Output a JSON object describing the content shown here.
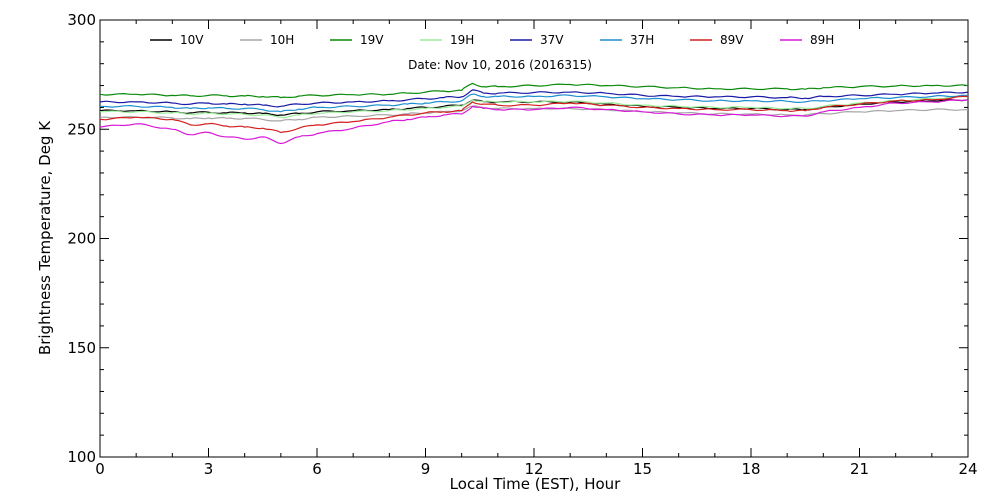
{
  "chart_data": {
    "type": "line",
    "title": "Date: Nov 10, 2016 (2016315)",
    "xlabel": "Local Time (EST), Hour",
    "ylabel": "Brightness Temperature, Deg  K",
    "xlim": [
      0,
      24
    ],
    "ylim": [
      100,
      300
    ],
    "xticks": [
      0,
      3,
      6,
      9,
      12,
      15,
      18,
      21,
      24
    ],
    "yticks": [
      100,
      150,
      200,
      250,
      300
    ],
    "grid": false,
    "legend_position": "top",
    "x": [
      0,
      1,
      2,
      2.5,
      3,
      3.5,
      4,
      4.5,
      5,
      5.5,
      6,
      7,
      8,
      8.5,
      9,
      9.5,
      10,
      10.3,
      10.6,
      11,
      12,
      13,
      14,
      15,
      16,
      17,
      18,
      19,
      19.5,
      20,
      21,
      22,
      23,
      24
    ],
    "series": [
      {
        "name": "10V",
        "color": "#000000",
        "values": [
          258.5,
          258.5,
          258,
          257.5,
          257.8,
          257.5,
          257.5,
          257.2,
          256.5,
          257.2,
          258,
          258.5,
          259,
          259.5,
          260,
          260.5,
          261,
          263.5,
          262.5,
          262.5,
          262.5,
          262.5,
          261.5,
          260.5,
          260,
          259.5,
          259.5,
          259,
          259,
          260,
          261.5,
          262.5,
          263,
          263.5
        ]
      },
      {
        "name": "10H",
        "color": "#a6a6a6",
        "values": [
          255.5,
          255.5,
          255.2,
          254.8,
          255.2,
          255,
          255,
          254.5,
          253.8,
          254.5,
          255.5,
          256,
          256.5,
          257,
          257.5,
          258,
          258.5,
          260.5,
          260,
          259.5,
          259.5,
          259.5,
          259,
          258,
          257.5,
          257,
          257,
          256.5,
          256.5,
          257.2,
          258,
          258.5,
          259,
          259
        ]
      },
      {
        "name": "19V",
        "color": "#0a8a0a",
        "values": [
          266,
          266,
          265.5,
          265.3,
          265.5,
          265.3,
          265.2,
          265,
          264.5,
          265.2,
          265.5,
          265.8,
          266,
          266.5,
          267,
          267.5,
          267.8,
          271,
          269.5,
          269.5,
          270,
          270.5,
          270,
          269.5,
          269,
          268.5,
          268.5,
          268.5,
          268.3,
          269,
          269.5,
          269.8,
          270,
          270
        ]
      },
      {
        "name": "19H",
        "color": "#9aee9a",
        "values": [
          258,
          258,
          257.5,
          257,
          257.3,
          257,
          256.8,
          256.5,
          255.5,
          256.5,
          257.3,
          258,
          258.5,
          259,
          259.5,
          260,
          260.5,
          263.5,
          262.5,
          262.5,
          262.5,
          262.8,
          262,
          261,
          260.5,
          260,
          260,
          259.5,
          259.5,
          260.5,
          262,
          263,
          264,
          265
        ]
      },
      {
        "name": "37V",
        "color": "#1a1aa6",
        "values": [
          262.5,
          262.5,
          262,
          261.5,
          262,
          261.5,
          261.5,
          261,
          260.5,
          261.5,
          262,
          262.5,
          263,
          263.5,
          264,
          264.5,
          264.8,
          268,
          266.5,
          266.5,
          266.8,
          267,
          266.5,
          265.5,
          265,
          264.8,
          264.8,
          264.5,
          264.2,
          265,
          265.5,
          266,
          266.5,
          267
        ]
      },
      {
        "name": "37H",
        "color": "#1e8fd0",
        "values": [
          260.5,
          260.5,
          260,
          259.5,
          259.8,
          259.5,
          259.5,
          259,
          258,
          259.2,
          260,
          260.5,
          261,
          261.5,
          262,
          262.5,
          263,
          266,
          265,
          265,
          265,
          265.5,
          264.8,
          264,
          263.5,
          263,
          263,
          262.8,
          262.5,
          263,
          264,
          264.5,
          265,
          265.5
        ]
      },
      {
        "name": "89V",
        "color": "#d42020",
        "values": [
          254.5,
          255.5,
          254.5,
          252,
          252.5,
          251.5,
          251,
          250.5,
          248.5,
          250.5,
          252,
          253.5,
          255.5,
          256.5,
          257.5,
          258,
          258.5,
          262.5,
          261.5,
          261,
          261,
          262,
          261,
          260,
          259.5,
          259,
          259,
          258.5,
          258.5,
          260,
          261.5,
          263,
          263.5,
          265
        ]
      },
      {
        "name": "89H",
        "color": "#d81ad8",
        "values": [
          251,
          252.5,
          250,
          247.5,
          248.5,
          246.5,
          245.5,
          246.5,
          243.5,
          246.5,
          248,
          250.5,
          253.5,
          254.5,
          255.5,
          256.5,
          257,
          260.5,
          259.5,
          259,
          259,
          260,
          259,
          258,
          257,
          256.5,
          256.5,
          256,
          256,
          258,
          260,
          262,
          262.5,
          263.5
        ]
      }
    ]
  }
}
